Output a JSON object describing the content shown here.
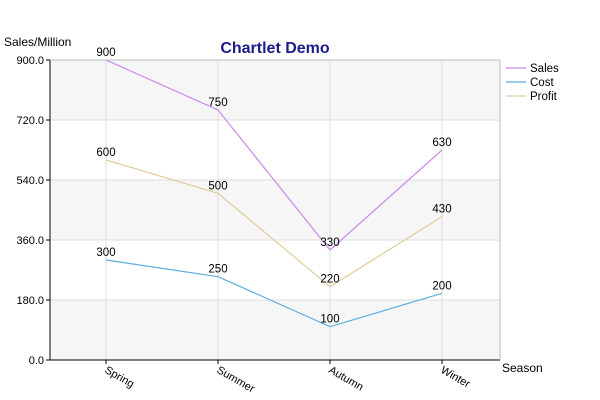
{
  "colors": {
    "title": "#1b1b8a",
    "band": "#f6f6f6",
    "grid": "#dddddd",
    "axis": "#000000"
  },
  "chart_data": {
    "type": "line",
    "title": "Chartlet Demo",
    "xlabel": "Season",
    "ylabel": "Sales/Million",
    "categories": [
      "Spring",
      "Summer",
      "Autumn",
      "Winter"
    ],
    "ylim": [
      0,
      900
    ],
    "yticks": [
      "0.0",
      "180.0",
      "360.0",
      "540.0",
      "720.0",
      "900.0"
    ],
    "grid": true,
    "legend_position": "right",
    "series": [
      {
        "name": "Sales",
        "color": "#cc88ee",
        "values": [
          900,
          750,
          330,
          630
        ]
      },
      {
        "name": "Cost",
        "color": "#5aaedd",
        "values": [
          300,
          250,
          100,
          200
        ]
      },
      {
        "name": "Profit",
        "color": "#e0cc99",
        "values": [
          600,
          500,
          220,
          430
        ]
      }
    ]
  }
}
